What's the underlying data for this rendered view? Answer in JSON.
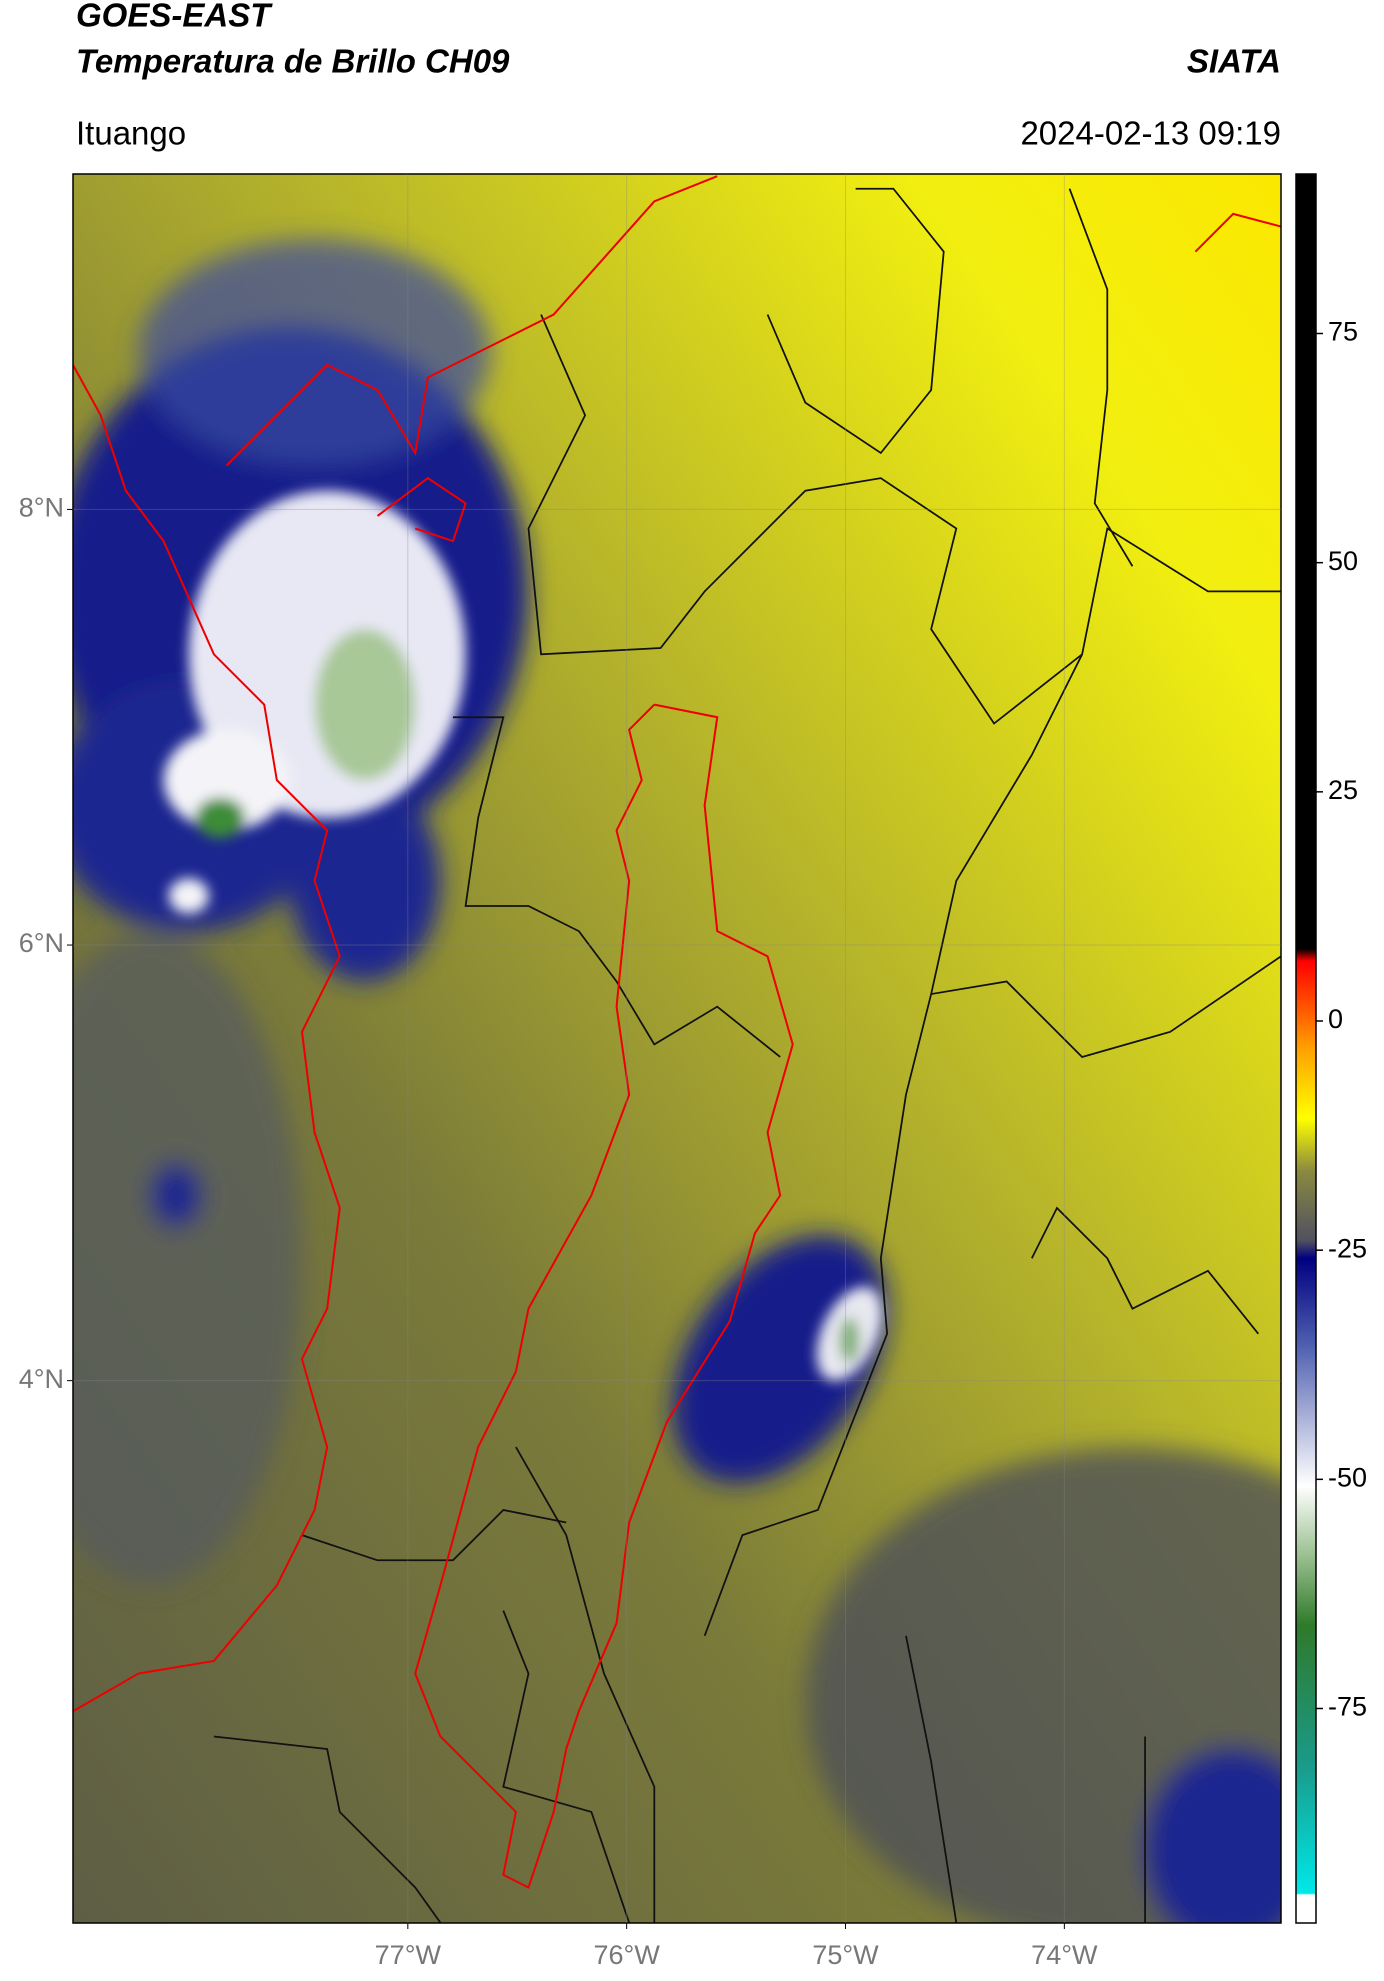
{
  "header": {
    "title_line1": "GOES-EAST",
    "title_line2": "Temperatura de Brillo CH09",
    "source": "SIATA",
    "location": "Ituango",
    "datetime": "2024-02-13 09:19"
  },
  "map": {
    "latlim": [
      1.51,
      9.54
    ],
    "lonlim": [
      -78.53,
      -73.01
    ],
    "lat_ticks": [
      {
        "value": 8,
        "label": "8°N"
      },
      {
        "value": 6,
        "label": "6°N"
      },
      {
        "value": 4,
        "label": "4°N"
      }
    ],
    "lon_ticks": [
      {
        "value": -77,
        "label": "77°W"
      },
      {
        "value": -76,
        "label": "76°W"
      },
      {
        "value": -75,
        "label": "75°W"
      },
      {
        "value": -74,
        "label": "74°W"
      }
    ],
    "colorbar": {
      "lim": [
        -98.4,
        92.4
      ],
      "ticks": [
        75,
        50,
        25,
        0,
        -25,
        -50,
        -75
      ]
    }
  }
}
